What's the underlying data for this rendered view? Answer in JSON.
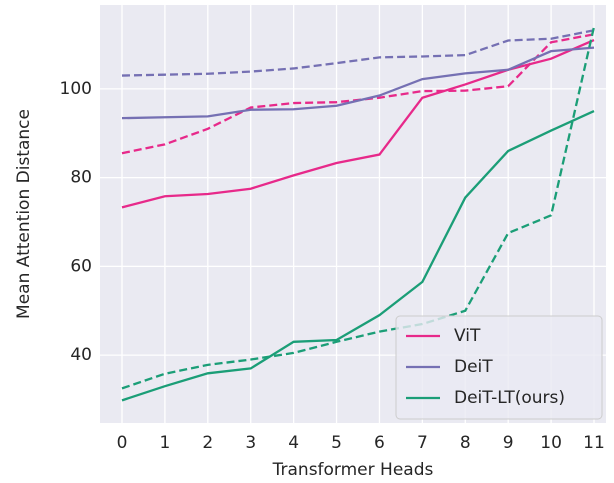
{
  "chart_data": {
    "type": "line",
    "x_label": "Transformer Heads",
    "y_label": "Mean Attention Distance",
    "categories": [
      "0",
      "1",
      "2",
      "3",
      "4",
      "5",
      "6",
      "7",
      "8",
      "9",
      "10",
      "11"
    ],
    "series": [
      {
        "name": "ViT",
        "color": "#e7298a",
        "values": [
          73.3,
          75.8,
          76.3,
          77.5,
          80.5,
          83.3,
          85.2,
          98,
          101,
          104.3,
          106.8,
          111
        ]
      },
      {
        "color": "#e7298a",
        "dashed": true,
        "values": [
          85.5,
          87.5,
          91,
          95.8,
          96.8,
          97,
          98,
          99.5,
          99.6,
          100.6,
          110.5,
          112.3
        ]
      },
      {
        "name": "DeiT",
        "color": "#7570b3",
        "values": [
          93.4,
          93.6,
          93.8,
          95.3,
          95.4,
          96.2,
          98.5,
          102.2,
          103.5,
          104.3,
          108.5,
          109.3
        ]
      },
      {
        "color": "#7570b3",
        "dashed": true,
        "values": [
          103,
          103.2,
          103.4,
          103.9,
          104.6,
          105.8,
          107.1,
          107.3,
          107.6,
          110.9,
          111.3,
          113.2
        ]
      },
      {
        "name": "DeiT-LT(ours)",
        "color": "#1b9e77",
        "values": [
          29.8,
          33,
          35.9,
          37,
          43,
          43.4,
          49,
          56.5,
          75.5,
          86,
          90.6,
          95
        ]
      },
      {
        "color": "#1b9e77",
        "dashed": true,
        "values": [
          32.5,
          35.8,
          37.8,
          39,
          40.5,
          43,
          45.3,
          47,
          50,
          67.5,
          71.5,
          114
        ]
      }
    ],
    "ylim": [
      24.7,
      118.9
    ],
    "yticks": [
      40,
      60,
      80,
      100
    ],
    "grid": true,
    "legend": "lower right"
  }
}
